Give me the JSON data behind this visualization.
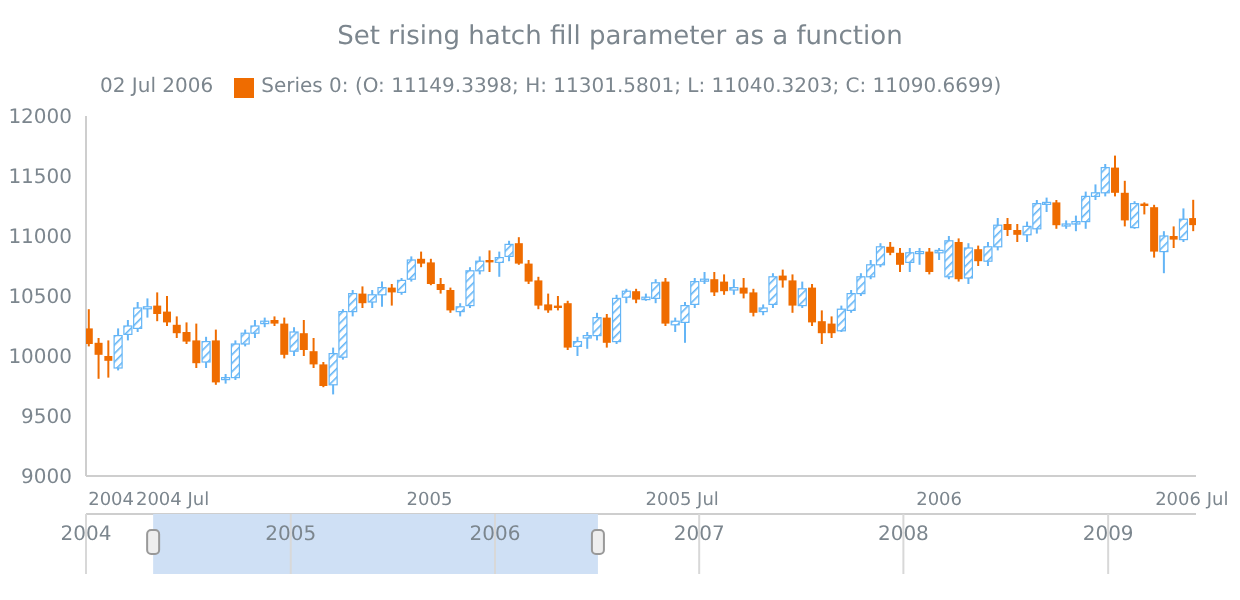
{
  "chart_data": {
    "type": "candlestick",
    "title": "Set rising hatch fill parameter as a function",
    "legend_title": "02 Jul 2006",
    "legend": "top left",
    "grid": false,
    "x": [
      "2004-05-02",
      "2004-05-09",
      "2004-05-16",
      "2004-05-23",
      "2004-05-30",
      "2004-06-06",
      "2004-06-13",
      "2004-06-20",
      "2004-06-27",
      "2004-07-04",
      "2004-07-11",
      "2004-07-18",
      "2004-07-25",
      "2004-08-01",
      "2004-08-08",
      "2004-08-15",
      "2004-08-22",
      "2004-08-29",
      "2004-09-05",
      "2004-09-12",
      "2004-09-19",
      "2004-09-26",
      "2004-10-03",
      "2004-10-10",
      "2004-10-17",
      "2004-10-24",
      "2004-10-31",
      "2004-11-07",
      "2004-11-14",
      "2004-11-21",
      "2004-11-28",
      "2004-12-05",
      "2004-12-12",
      "2004-12-19",
      "2004-12-26",
      "2005-01-02",
      "2005-01-09",
      "2005-01-16",
      "2005-01-23",
      "2005-01-30",
      "2005-02-06",
      "2005-02-13",
      "2005-02-20",
      "2005-02-27",
      "2005-03-06",
      "2005-03-13",
      "2005-03-20",
      "2005-03-27",
      "2005-04-03",
      "2005-04-10",
      "2005-04-17",
      "2005-04-24",
      "2005-05-01",
      "2005-05-08",
      "2005-05-15",
      "2005-05-22",
      "2005-05-29",
      "2005-06-05",
      "2005-06-12",
      "2005-06-19",
      "2005-06-26",
      "2005-07-03",
      "2005-07-10",
      "2005-07-17",
      "2005-07-24",
      "2005-07-31",
      "2005-08-07",
      "2005-08-14",
      "2005-08-21",
      "2005-08-28",
      "2005-09-04",
      "2005-09-11",
      "2005-09-18",
      "2005-09-25",
      "2005-10-02",
      "2005-10-09",
      "2005-10-16",
      "2005-10-23",
      "2005-10-30",
      "2005-11-06",
      "2005-11-13",
      "2005-11-20",
      "2005-11-27",
      "2005-12-04",
      "2005-12-11",
      "2005-12-18",
      "2005-12-25",
      "2006-01-01",
      "2006-01-08",
      "2006-01-15",
      "2006-01-22",
      "2006-01-29",
      "2006-02-05",
      "2006-02-12",
      "2006-02-19",
      "2006-02-26",
      "2006-03-05",
      "2006-03-12",
      "2006-03-19",
      "2006-03-26",
      "2006-04-02",
      "2006-04-09",
      "2006-04-16",
      "2006-04-23",
      "2006-04-30",
      "2006-05-07",
      "2006-05-14",
      "2006-05-21",
      "2006-05-28",
      "2006-06-04",
      "2006-06-11",
      "2006-06-18",
      "2006-06-25",
      "2006-07-02"
    ],
    "series": [
      {
        "name": "Series 0: (O: 11149.3398; H: 11301.5801; L: 11040.3203; C: 11090.6699)",
        "color": "#ef6c00",
        "ohlc": [
          [
            10230,
            10390,
            10080,
            10100
          ],
          [
            10110,
            10150,
            9810,
            10010
          ],
          [
            10000,
            10130,
            9820,
            9960
          ],
          [
            9900,
            10230,
            9880,
            10170
          ],
          [
            10180,
            10300,
            10130,
            10250
          ],
          [
            10230,
            10450,
            10200,
            10400
          ],
          [
            10400,
            10480,
            10320,
            10410
          ],
          [
            10420,
            10530,
            10290,
            10350
          ],
          [
            10370,
            10500,
            10250,
            10280
          ],
          [
            10260,
            10330,
            10150,
            10190
          ],
          [
            10200,
            10280,
            10100,
            10120
          ],
          [
            10130,
            10270,
            9900,
            9940
          ],
          [
            9950,
            10160,
            9900,
            10120
          ],
          [
            10130,
            10220,
            9760,
            9780
          ],
          [
            9810,
            9850,
            9770,
            9820
          ],
          [
            9820,
            10130,
            9800,
            10100
          ],
          [
            10100,
            10220,
            10080,
            10190
          ],
          [
            10190,
            10300,
            10150,
            10250
          ],
          [
            10270,
            10320,
            10240,
            10290
          ],
          [
            10300,
            10330,
            10250,
            10270
          ],
          [
            10270,
            10320,
            9980,
            10010
          ],
          [
            10040,
            10240,
            10000,
            10200
          ],
          [
            10190,
            10300,
            10000,
            10050
          ],
          [
            10040,
            10150,
            9900,
            9930
          ],
          [
            9930,
            9950,
            9740,
            9750
          ],
          [
            9760,
            10070,
            9680,
            10020
          ],
          [
            9990,
            10390,
            9970,
            10370
          ],
          [
            10370,
            10550,
            10330,
            10520
          ],
          [
            10520,
            10580,
            10400,
            10440
          ],
          [
            10450,
            10550,
            10400,
            10510
          ],
          [
            10510,
            10620,
            10410,
            10570
          ],
          [
            10570,
            10600,
            10420,
            10530
          ],
          [
            10530,
            10650,
            10510,
            10630
          ],
          [
            10640,
            10830,
            10620,
            10800
          ],
          [
            10810,
            10870,
            10740,
            10770
          ],
          [
            10780,
            10810,
            10590,
            10600
          ],
          [
            10600,
            10650,
            10520,
            10550
          ],
          [
            10550,
            10570,
            10360,
            10380
          ],
          [
            10370,
            10440,
            10330,
            10410
          ],
          [
            10420,
            10740,
            10400,
            10710
          ],
          [
            10710,
            10830,
            10680,
            10790
          ],
          [
            10800,
            10880,
            10700,
            10780
          ],
          [
            10780,
            10870,
            10660,
            10820
          ],
          [
            10830,
            10960,
            10790,
            10930
          ],
          [
            10940,
            10990,
            10760,
            10770
          ],
          [
            10770,
            10800,
            10600,
            10620
          ],
          [
            10630,
            10660,
            10390,
            10420
          ],
          [
            10430,
            10520,
            10360,
            10380
          ],
          [
            10420,
            10500,
            10380,
            10400
          ],
          [
            10440,
            10460,
            10050,
            10070
          ],
          [
            10080,
            10160,
            10000,
            10120
          ],
          [
            10150,
            10200,
            10060,
            10170
          ],
          [
            10170,
            10360,
            10130,
            10320
          ],
          [
            10320,
            10350,
            10070,
            10110
          ],
          [
            10120,
            10510,
            10100,
            10480
          ],
          [
            10490,
            10560,
            10440,
            10540
          ],
          [
            10540,
            10560,
            10440,
            10470
          ],
          [
            10470,
            10520,
            10460,
            10490
          ],
          [
            10480,
            10640,
            10440,
            10610
          ],
          [
            10620,
            10650,
            10250,
            10270
          ],
          [
            10260,
            10320,
            10200,
            10290
          ],
          [
            10280,
            10450,
            10110,
            10420
          ],
          [
            10430,
            10650,
            10400,
            10620
          ],
          [
            10630,
            10700,
            10600,
            10640
          ],
          [
            10640,
            10700,
            10500,
            10530
          ],
          [
            10620,
            10680,
            10510,
            10540
          ],
          [
            10550,
            10640,
            10510,
            10570
          ],
          [
            10570,
            10650,
            10480,
            10520
          ],
          [
            10530,
            10560,
            10330,
            10360
          ],
          [
            10370,
            10430,
            10340,
            10400
          ],
          [
            10430,
            10690,
            10400,
            10660
          ],
          [
            10670,
            10720,
            10570,
            10630
          ],
          [
            10630,
            10680,
            10360,
            10420
          ],
          [
            10420,
            10620,
            10400,
            10560
          ],
          [
            10570,
            10600,
            10250,
            10280
          ],
          [
            10290,
            10380,
            10100,
            10190
          ],
          [
            10270,
            10330,
            10150,
            10190
          ],
          [
            10210,
            10420,
            10200,
            10390
          ],
          [
            10380,
            10550,
            10360,
            10520
          ],
          [
            10520,
            10690,
            10500,
            10660
          ],
          [
            10660,
            10800,
            10640,
            10760
          ],
          [
            10760,
            10940,
            10740,
            10910
          ],
          [
            10910,
            10950,
            10840,
            10860
          ],
          [
            10860,
            10900,
            10700,
            10760
          ],
          [
            10780,
            10900,
            10700,
            10860
          ],
          [
            10860,
            10900,
            10760,
            10870
          ],
          [
            10870,
            10900,
            10680,
            10700
          ],
          [
            10860,
            10900,
            10800,
            10880
          ],
          [
            10660,
            11000,
            10640,
            10960
          ],
          [
            10950,
            10980,
            10620,
            10640
          ],
          [
            10650,
            10940,
            10600,
            10900
          ],
          [
            10890,
            10920,
            10750,
            10790
          ],
          [
            10790,
            10950,
            10750,
            10910
          ],
          [
            10910,
            11150,
            10880,
            11090
          ],
          [
            11100,
            11150,
            11000,
            11050
          ],
          [
            11050,
            11100,
            10950,
            11010
          ],
          [
            11010,
            11120,
            10950,
            11080
          ],
          [
            11060,
            11300,
            11020,
            11270
          ],
          [
            11270,
            11320,
            11200,
            11280
          ],
          [
            11280,
            11300,
            11060,
            11090
          ],
          [
            11090,
            11130,
            11060,
            11100
          ],
          [
            11100,
            11170,
            11040,
            11120
          ],
          [
            11120,
            11370,
            11060,
            11330
          ],
          [
            11330,
            11430,
            11300,
            11360
          ],
          [
            11360,
            11600,
            11330,
            11570
          ],
          [
            11570,
            11670,
            11330,
            11360
          ],
          [
            11360,
            11460,
            11080,
            11130
          ],
          [
            11070,
            11290,
            11060,
            11270
          ],
          [
            11270,
            11280,
            11180,
            11250
          ],
          [
            11240,
            11260,
            10820,
            10870
          ],
          [
            10870,
            11040,
            10690,
            11000
          ],
          [
            11000,
            11080,
            10900,
            10970
          ],
          [
            10970,
            11230,
            10950,
            11140
          ],
          [
            11149.3398,
            11301.5801,
            11040.3203,
            11090.6699
          ]
        ],
        "colors": [
          "#ef6c00",
          "#ef6c00",
          "#ef6c00",
          "#64b5f6",
          "#64b5f6",
          "#64b5f6",
          "#64b5f6",
          "#ef6c00",
          "#ef6c00",
          "#ef6c00",
          "#ef6c00",
          "#ef6c00",
          "#64b5f6",
          "#ef6c00",
          "#64b5f6",
          "#64b5f6",
          "#64b5f6",
          "#64b5f6",
          "#64b5f6",
          "#ef6c00",
          "#ef6c00",
          "#64b5f6",
          "#ef6c00",
          "#ef6c00",
          "#ef6c00",
          "#64b5f6",
          "#64b5f6",
          "#64b5f6",
          "#ef6c00",
          "#64b5f6",
          "#64b5f6",
          "#ef6c00",
          "#64b5f6",
          "#64b5f6",
          "#ef6c00",
          "#ef6c00",
          "#ef6c00",
          "#ef6c00",
          "#64b5f6",
          "#64b5f6",
          "#64b5f6",
          "#ef6c00",
          "#64b5f6",
          "#64b5f6",
          "#ef6c00",
          "#ef6c00",
          "#ef6c00",
          "#ef6c00",
          "#ef6c00",
          "#ef6c00",
          "#64b5f6",
          "#64b5f6",
          "#64b5f6",
          "#ef6c00",
          "#64b5f6",
          "#64b5f6",
          "#ef6c00",
          "#64b5f6",
          "#64b5f6",
          "#ef6c00",
          "#64b5f6",
          "#64b5f6",
          "#64b5f6",
          "#64b5f6",
          "#ef6c00",
          "#ef6c00",
          "#64b5f6",
          "#ef6c00",
          "#ef6c00",
          "#64b5f6",
          "#64b5f6",
          "#ef6c00",
          "#ef6c00",
          "#64b5f6",
          "#ef6c00",
          "#ef6c00",
          "#ef6c00",
          "#64b5f6",
          "#64b5f6",
          "#64b5f6",
          "#64b5f6",
          "#64b5f6",
          "#ef6c00",
          "#ef6c00",
          "#64b5f6",
          "#64b5f6",
          "#ef6c00",
          "#64b5f6",
          "#64b5f6",
          "#ef6c00",
          "#64b5f6",
          "#ef6c00",
          "#64b5f6",
          "#64b5f6",
          "#ef6c00",
          "#ef6c00",
          "#64b5f6",
          "#64b5f6",
          "#64b5f6",
          "#ef6c00",
          "#64b5f6",
          "#64b5f6",
          "#64b5f6",
          "#64b5f6",
          "#64b5f6",
          "#ef6c00",
          "#ef6c00",
          "#64b5f6",
          "#ef6c00",
          "#ef6c00",
          "#64b5f6",
          "#ef6c00",
          "#64b5f6",
          "#ef6c00"
        ]
      }
    ],
    "xlim": [
      "2004-04-30",
      "2006-07-04"
    ],
    "xticks": [
      {
        "value": "2004-05-18",
        "label": "2004"
      },
      {
        "value": "2004-07-01",
        "label": "2004 Jul"
      },
      {
        "value": "2005-01-01",
        "label": "2005"
      },
      {
        "value": "2005-07-01",
        "label": "2005 Jul"
      },
      {
        "value": "2006-01-01",
        "label": "2006"
      },
      {
        "value": "2006-07-01",
        "label": "2006 Jul"
      }
    ],
    "ylim": [
      9000,
      12000
    ],
    "yticks": [
      9000,
      9500,
      10000,
      10500,
      11000,
      11500,
      12000
    ],
    "x2lim": [
      "2004-01-01",
      "2009-06-07"
    ],
    "x2ticks": [
      {
        "value": "2004-01-01",
        "label": "2004"
      },
      {
        "value": "2005-01-01",
        "label": "2005"
      },
      {
        "value": "2006-01-01",
        "label": "2006"
      },
      {
        "value": "2007-01-01",
        "label": "2007"
      },
      {
        "value": "2008-01-01",
        "label": "2008"
      },
      {
        "value": "2009-01-01",
        "label": "2009"
      }
    ]
  }
}
